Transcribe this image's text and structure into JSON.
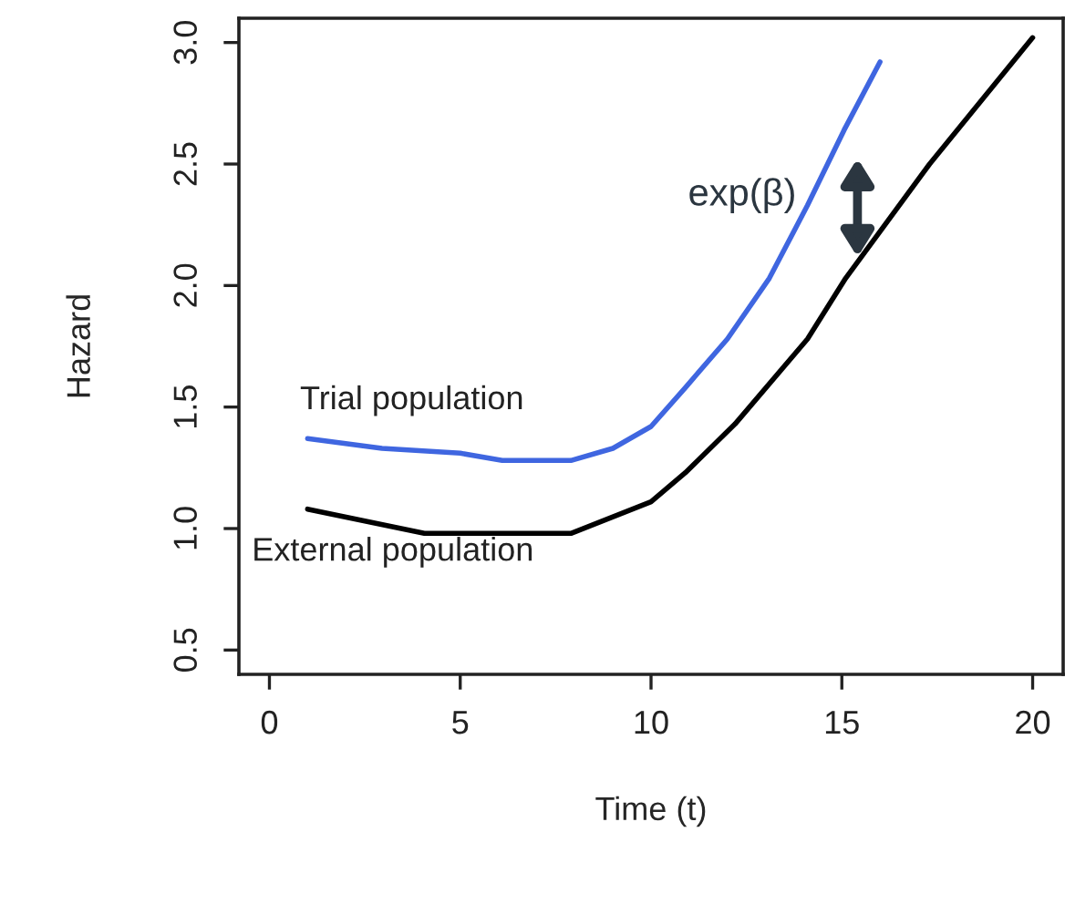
{
  "chart_data": {
    "type": "line",
    "xlabel": "Time (t)",
    "ylabel": "Hazard",
    "xlim": [
      -0.8,
      20.8
    ],
    "ylim": [
      0.4,
      3.1
    ],
    "xticks": [
      0,
      5,
      10,
      15,
      20
    ],
    "yticks": [
      0.5,
      {
        "value": 1,
        "label": "1.0"
      },
      1.5,
      {
        "value": 2,
        "label": "2.0"
      },
      2.5,
      {
        "value": 3,
        "label": "3.0"
      }
    ],
    "grid": false,
    "legend": false,
    "marker": "none",
    "line_style": "solid",
    "series": [
      {
        "name": "Trial population",
        "color": "#3f66e0",
        "x": [
          1.0,
          2.95,
          5.0,
          6.1,
          7.9,
          9.0,
          10.0,
          10.9,
          12.0,
          13.1,
          14.1,
          15.06,
          16.0
        ],
        "values": [
          1.37,
          1.33,
          1.31,
          1.28,
          1.28,
          1.33,
          1.42,
          1.58,
          1.78,
          2.03,
          2.33,
          2.64,
          2.92
        ]
      },
      {
        "name": "External population",
        "color": "#000000",
        "x": [
          1.0,
          4.06,
          7.9,
          10.0,
          10.9,
          12.2,
          14.1,
          15.1,
          17.3,
          20.0
        ],
        "values": [
          1.08,
          0.98,
          0.98,
          1.11,
          1.23,
          1.43,
          1.78,
          2.03,
          2.5,
          3.02
        ]
      }
    ],
    "annotations": [
      "exp(β)"
    ]
  }
}
